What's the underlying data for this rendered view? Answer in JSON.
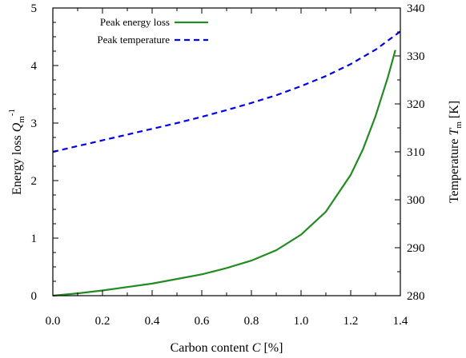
{
  "chart_data": {
    "type": "line",
    "xlabel_prefix": "Carbon content ",
    "xlabel_var": "C",
    "xlabel_suffix": " [%]",
    "ylabel_prefix": "Energy loss ",
    "ylabel_var": "Q",
    "ylabel_sub": "m",
    "ylabel_sup": "-1",
    "y2label_prefix": "Temperature ",
    "y2label_var": "T",
    "y2label_sub": "m",
    "y2label_suffix": " [K]",
    "xlim": [
      0.0,
      1.4
    ],
    "ylim": [
      0,
      5
    ],
    "y2lim": [
      280,
      340
    ],
    "xticks": [
      "0.0",
      "0.2",
      "0.4",
      "0.6",
      "0.8",
      "1.0",
      "1.2",
      "1.4"
    ],
    "yticks": [
      "0",
      "1",
      "2",
      "3",
      "4",
      "5"
    ],
    "y2ticks": [
      "280",
      "290",
      "300",
      "310",
      "320",
      "330",
      "340"
    ],
    "grid": false,
    "legend_position": "top-left",
    "series": [
      {
        "name": "Peak energy loss",
        "axis": "left",
        "color": "#228B22",
        "style": "solid",
        "x": [
          0.0,
          0.1,
          0.2,
          0.3,
          0.4,
          0.5,
          0.6,
          0.7,
          0.8,
          0.9,
          1.0,
          1.1,
          1.2,
          1.25,
          1.3,
          1.35,
          1.38
        ],
        "y": [
          0.0,
          0.04,
          0.09,
          0.15,
          0.21,
          0.29,
          0.37,
          0.48,
          0.61,
          0.79,
          1.06,
          1.46,
          2.1,
          2.55,
          3.12,
          3.8,
          4.27
        ]
      },
      {
        "name": "Peak temperature",
        "axis": "right",
        "color": "#0000EE",
        "style": "dashed",
        "x": [
          0.0,
          0.1,
          0.2,
          0.3,
          0.4,
          0.5,
          0.6,
          0.7,
          0.8,
          0.9,
          1.0,
          1.1,
          1.2,
          1.3,
          1.4
        ],
        "y": [
          310.0,
          311.2,
          312.4,
          313.6,
          314.8,
          316.0,
          317.3,
          318.7,
          320.2,
          321.8,
          323.7,
          325.8,
          328.3,
          331.3,
          335.1
        ]
      }
    ]
  }
}
